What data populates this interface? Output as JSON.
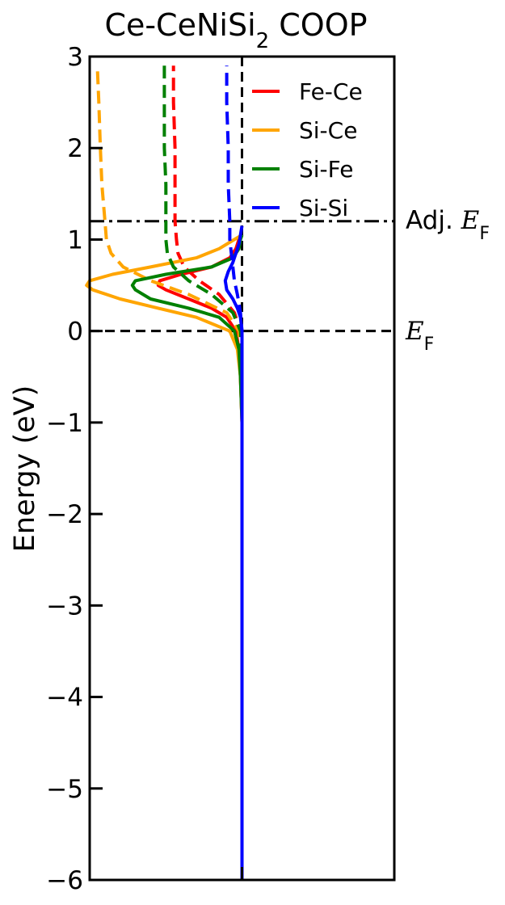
{
  "chart_data": {
    "type": "line",
    "title": "Ce-CeNiSi",
    "title_subscript": "2",
    "title_suffix": " COOP",
    "xlabel": "",
    "ylabel": "Energy (eV)",
    "ylim": [
      -6,
      3
    ],
    "xlim": [
      -0.1,
      0.1
    ],
    "yticks": [
      3,
      2,
      1,
      0,
      -1,
      -2,
      -3,
      -4,
      -5,
      -6
    ],
    "ytick_labels": [
      "3",
      "2",
      "1",
      "0",
      "−1",
      "−2",
      "−3",
      "−4",
      "−5",
      "−6"
    ],
    "grid": false,
    "legend_position": "top-right",
    "reference_lines": [
      {
        "label": "Adj. E",
        "label_sub": "F",
        "y": 1.2,
        "style": "dashdot",
        "color": "#000000"
      },
      {
        "label": "E",
        "label_sub": "F",
        "y": 0,
        "style": "dashed",
        "color": "#000000"
      },
      {
        "label": "",
        "x": 0,
        "style": "dashed",
        "color": "#000000"
      }
    ],
    "series": [
      {
        "name": "Fe-Ce",
        "color": "#ff0000",
        "solid": {
          "y": [
            -6.0,
            -3.0,
            -1.0,
            -0.5,
            -0.2,
            0.0,
            0.15,
            0.25,
            0.35,
            0.45,
            0.5,
            0.55,
            0.62,
            0.7,
            0.8,
            0.9,
            1.0,
            1.05
          ],
          "x": [
            0.0,
            0.0,
            0.0,
            -0.001,
            -0.002,
            -0.004,
            -0.01,
            -0.02,
            -0.035,
            -0.05,
            -0.055,
            -0.054,
            -0.04,
            -0.02,
            -0.008,
            -0.004,
            -0.002,
            0.0
          ]
        },
        "cumulative": {
          "y": [
            -6.0,
            -2.0,
            -1.0,
            -0.5,
            0.0,
            0.2,
            0.4,
            0.55,
            0.7,
            0.85,
            1.0,
            1.2,
            1.6,
            2.0,
            2.5,
            2.9
          ],
          "x": [
            0.0,
            0.0,
            0.0,
            0.0,
            -0.001,
            -0.005,
            -0.015,
            -0.028,
            -0.038,
            -0.042,
            -0.043,
            -0.044,
            -0.044,
            -0.044,
            -0.045,
            -0.045
          ]
        }
      },
      {
        "name": "Si-Ce",
        "color": "#ffa500",
        "solid": {
          "y": [
            -6.0,
            -3.0,
            -1.0,
            -0.5,
            -0.2,
            0.0,
            0.15,
            0.25,
            0.35,
            0.45,
            0.5,
            0.55,
            0.62,
            0.7,
            0.8,
            0.9,
            1.0,
            1.05
          ],
          "x": [
            0.0,
            0.0,
            0.0,
            -0.001,
            -0.003,
            -0.008,
            -0.03,
            -0.055,
            -0.08,
            -0.098,
            -0.102,
            -0.1,
            -0.085,
            -0.06,
            -0.03,
            -0.015,
            -0.005,
            0.0
          ]
        },
        "cumulative": {
          "y": [
            -6.0,
            -2.0,
            -1.0,
            -0.5,
            0.0,
            0.2,
            0.4,
            0.55,
            0.7,
            0.85,
            1.0,
            1.2,
            1.6,
            2.0,
            2.5,
            2.9
          ],
          "x": [
            0.0,
            0.0,
            0.0,
            0.0,
            -0.002,
            -0.01,
            -0.035,
            -0.06,
            -0.078,
            -0.086,
            -0.089,
            -0.09,
            -0.092,
            -0.093,
            -0.094,
            -0.095
          ]
        }
      },
      {
        "name": "Si-Fe",
        "color": "#008000",
        "solid": {
          "y": [
            -6.0,
            -3.0,
            -1.0,
            -0.5,
            -0.2,
            0.0,
            0.15,
            0.25,
            0.35,
            0.45,
            0.5,
            0.55,
            0.62,
            0.7,
            0.8,
            0.9,
            1.0,
            1.05
          ],
          "x": [
            0.0,
            0.0,
            0.0,
            -0.001,
            -0.002,
            -0.005,
            -0.015,
            -0.035,
            -0.06,
            -0.07,
            -0.072,
            -0.07,
            -0.05,
            -0.02,
            -0.006,
            -0.002,
            -0.001,
            0.0
          ]
        },
        "cumulative": {
          "y": [
            -6.0,
            -2.0,
            -1.0,
            -0.5,
            0.0,
            0.2,
            0.4,
            0.55,
            0.7,
            0.85,
            1.0,
            1.2,
            1.6,
            2.0,
            2.5,
            2.9
          ],
          "x": [
            0.0,
            0.0,
            0.0,
            0.0,
            -0.001,
            -0.006,
            -0.02,
            -0.035,
            -0.045,
            -0.049,
            -0.05,
            -0.05,
            -0.05,
            -0.051,
            -0.051,
            -0.051
          ]
        }
      },
      {
        "name": "Si-Si",
        "color": "#0000ff",
        "solid": {
          "y": [
            -6.0,
            -3.0,
            -1.0,
            -0.5,
            -0.2,
            0.0,
            0.15,
            0.25,
            0.35,
            0.45,
            0.55,
            0.65,
            0.75,
            0.85,
            0.95,
            1.05,
            1.15
          ],
          "x": [
            0.0,
            0.0,
            0.0,
            0.0,
            0.0,
            0.0,
            -0.001,
            -0.003,
            -0.006,
            -0.01,
            -0.011,
            -0.009,
            -0.006,
            -0.004,
            -0.002,
            -0.001,
            0.0
          ]
        },
        "cumulative": {
          "y": [
            -6.0,
            -2.0,
            -1.0,
            -0.5,
            0.0,
            0.2,
            0.4,
            0.55,
            0.7,
            0.85,
            1.0,
            1.2,
            1.6,
            2.0,
            2.5,
            2.9
          ],
          "x": [
            0.0,
            0.0,
            0.0,
            0.0,
            0.0,
            -0.001,
            -0.003,
            -0.005,
            -0.006,
            -0.007,
            -0.008,
            -0.008,
            -0.009,
            -0.009,
            -0.01,
            -0.01
          ]
        }
      }
    ]
  }
}
